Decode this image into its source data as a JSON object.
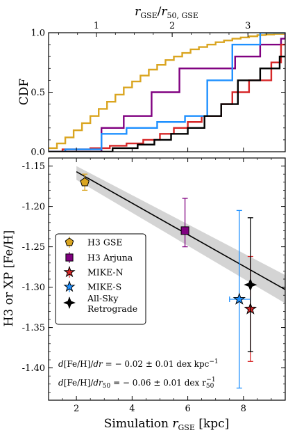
{
  "chart_data": [
    {
      "type": "line",
      "panel": "top",
      "ylabel": "CDF",
      "top_xlabel": "r_GSE / r_50,GSE",
      "xlim": [
        1.0,
        9.5
      ],
      "ylim": [
        0.0,
        1.0
      ],
      "yticks": [
        0.0,
        0.5,
        1.0
      ],
      "ytick_labels": [
        "0.0",
        "0.5",
        "1.0"
      ],
      "top_xticks": [
        1,
        2,
        3
      ],
      "top_xtick_labels": [
        "1",
        "2",
        "3"
      ],
      "top_axis_scale": 2.72,
      "series": [
        {
          "name": "H3 GSE",
          "color": "#DAA520",
          "style": "step",
          "x": [
            1.0,
            1.3,
            1.6,
            1.9,
            2.2,
            2.5,
            2.8,
            3.1,
            3.4,
            3.7,
            4.0,
            4.3,
            4.6,
            4.9,
            5.2,
            5.5,
            5.8,
            6.1,
            6.4,
            6.7,
            7.0,
            7.3,
            7.6,
            7.9,
            8.2,
            8.5,
            8.8,
            9.1,
            9.5
          ],
          "y": [
            0.03,
            0.07,
            0.12,
            0.18,
            0.24,
            0.3,
            0.36,
            0.42,
            0.48,
            0.54,
            0.59,
            0.64,
            0.69,
            0.73,
            0.77,
            0.8,
            0.83,
            0.86,
            0.88,
            0.9,
            0.92,
            0.935,
            0.95,
            0.96,
            0.97,
            0.98,
            0.985,
            0.99,
            0.995
          ]
        },
        {
          "name": "H3 Arjuna",
          "color": "#800080",
          "style": "step",
          "x": [
            1.0,
            2.9,
            3.7,
            4.7,
            5.7,
            7.7,
            8.6,
            9.35,
            9.5
          ],
          "y": [
            0.0,
            0.2,
            0.3,
            0.5,
            0.7,
            0.8,
            0.9,
            0.95,
            1.0
          ]
        },
        {
          "name": "MIKE-N",
          "color": "#D62728",
          "style": "step",
          "x": [
            1.0,
            1.5,
            2.5,
            3.2,
            3.8,
            4.4,
            5.0,
            5.5,
            6.0,
            6.5,
            7.2,
            7.6,
            8.2,
            9.0,
            9.35
          ],
          "y": [
            0.0,
            0.02,
            0.03,
            0.05,
            0.07,
            0.1,
            0.15,
            0.2,
            0.25,
            0.3,
            0.4,
            0.5,
            0.6,
            0.75,
            0.9
          ]
        },
        {
          "name": "MIKE-S",
          "color": "#1E90FF",
          "style": "step",
          "x": [
            1.0,
            1.6,
            2.9,
            3.8,
            4.9,
            5.9,
            6.7,
            7.6,
            8.6,
            9.5
          ],
          "y": [
            0.0,
            0.02,
            0.15,
            0.2,
            0.25,
            0.3,
            0.6,
            0.9,
            1.0,
            1.0
          ]
        },
        {
          "name": "All-Sky Retrograde",
          "color": "#000000",
          "style": "step",
          "x": [
            1.0,
            3.3,
            4.2,
            4.8,
            5.4,
            6.0,
            6.6,
            7.2,
            7.8,
            8.6,
            9.3
          ],
          "y": [
            0.0,
            0.03,
            0.06,
            0.1,
            0.15,
            0.2,
            0.3,
            0.4,
            0.6,
            0.7,
            0.8
          ]
        }
      ]
    },
    {
      "type": "scatter",
      "panel": "bottom",
      "xlabel": "Simulation r_GSE [kpc]",
      "ylabel": "H3 or XP [Fe/H]",
      "xlim": [
        1.0,
        9.5
      ],
      "ylim": [
        -1.44,
        -1.14
      ],
      "xticks": [
        2,
        4,
        6,
        8
      ],
      "xtick_labels": [
        "2",
        "4",
        "6",
        "8"
      ],
      "yticks": [
        -1.15,
        -1.2,
        -1.25,
        -1.3,
        -1.35,
        -1.4
      ],
      "ytick_labels": [
        "-1.15",
        "-1.20",
        "-1.25",
        "-1.30",
        "-1.35",
        "-1.40"
      ],
      "grid": false,
      "legend_position": "middle-left",
      "points": [
        {
          "name": "H3 GSE",
          "marker": "pentagon",
          "color": "#DAA520",
          "x": 2.3,
          "y": -1.17,
          "yerr": [
            0.01,
            0.01
          ],
          "xerr": [
            0.0,
            0.0
          ]
        },
        {
          "name": "H3 Arjuna",
          "marker": "square",
          "color": "#800080",
          "x": 5.9,
          "y": -1.23,
          "yerr": [
            0.02,
            0.04
          ],
          "xerr": [
            0.0,
            0.0
          ]
        },
        {
          "name": "MIKE-N",
          "marker": "star",
          "color": "#D62728",
          "x": 8.25,
          "y": -1.327,
          "yerr": [
            0.065,
            0.065
          ],
          "xerr": [
            0.0,
            0.0
          ]
        },
        {
          "name": "MIKE-S",
          "marker": "star",
          "color": "#1E90FF",
          "x": 7.85,
          "y": -1.315,
          "yerr": [
            0.11,
            0.11
          ],
          "xerr": [
            0.35,
            0.4
          ]
        },
        {
          "name": "All-Sky Retrograde",
          "marker": "cross",
          "color": "#000000",
          "x": 8.25,
          "y": -1.297,
          "yerr": [
            0.083,
            0.083
          ],
          "xerr": [
            0.0,
            0.0
          ]
        }
      ],
      "fit": {
        "x": [
          2.0,
          9.5
        ],
        "y": [
          -1.157,
          -1.303
        ],
        "band_lower": [
          -1.167,
          -1.32
        ],
        "band_upper": [
          -1.15,
          -1.285
        ],
        "color": "#000000",
        "band_color": "#b0b0b0"
      },
      "annotations": [
        "d[Fe/H]/dr = − 0.02 ± 0.01 dex kpc⁻¹",
        "d[Fe/H]/dr₅₀ = − 0.06 ± 0.01 dex r₅₀⁻¹"
      ]
    }
  ],
  "legend": {
    "items": [
      {
        "label": "H3 GSE",
        "marker": "pentagon",
        "color": "#DAA520"
      },
      {
        "label": "H3 Arjuna",
        "marker": "square",
        "color": "#800080"
      },
      {
        "label": "MIKE-N",
        "marker": "star",
        "color": "#D62728"
      },
      {
        "label": "MIKE-S",
        "marker": "star",
        "color": "#1E90FF"
      },
      {
        "label": "All-Sky",
        "label2": "Retrograde",
        "marker": "cross",
        "color": "#000000"
      }
    ]
  }
}
